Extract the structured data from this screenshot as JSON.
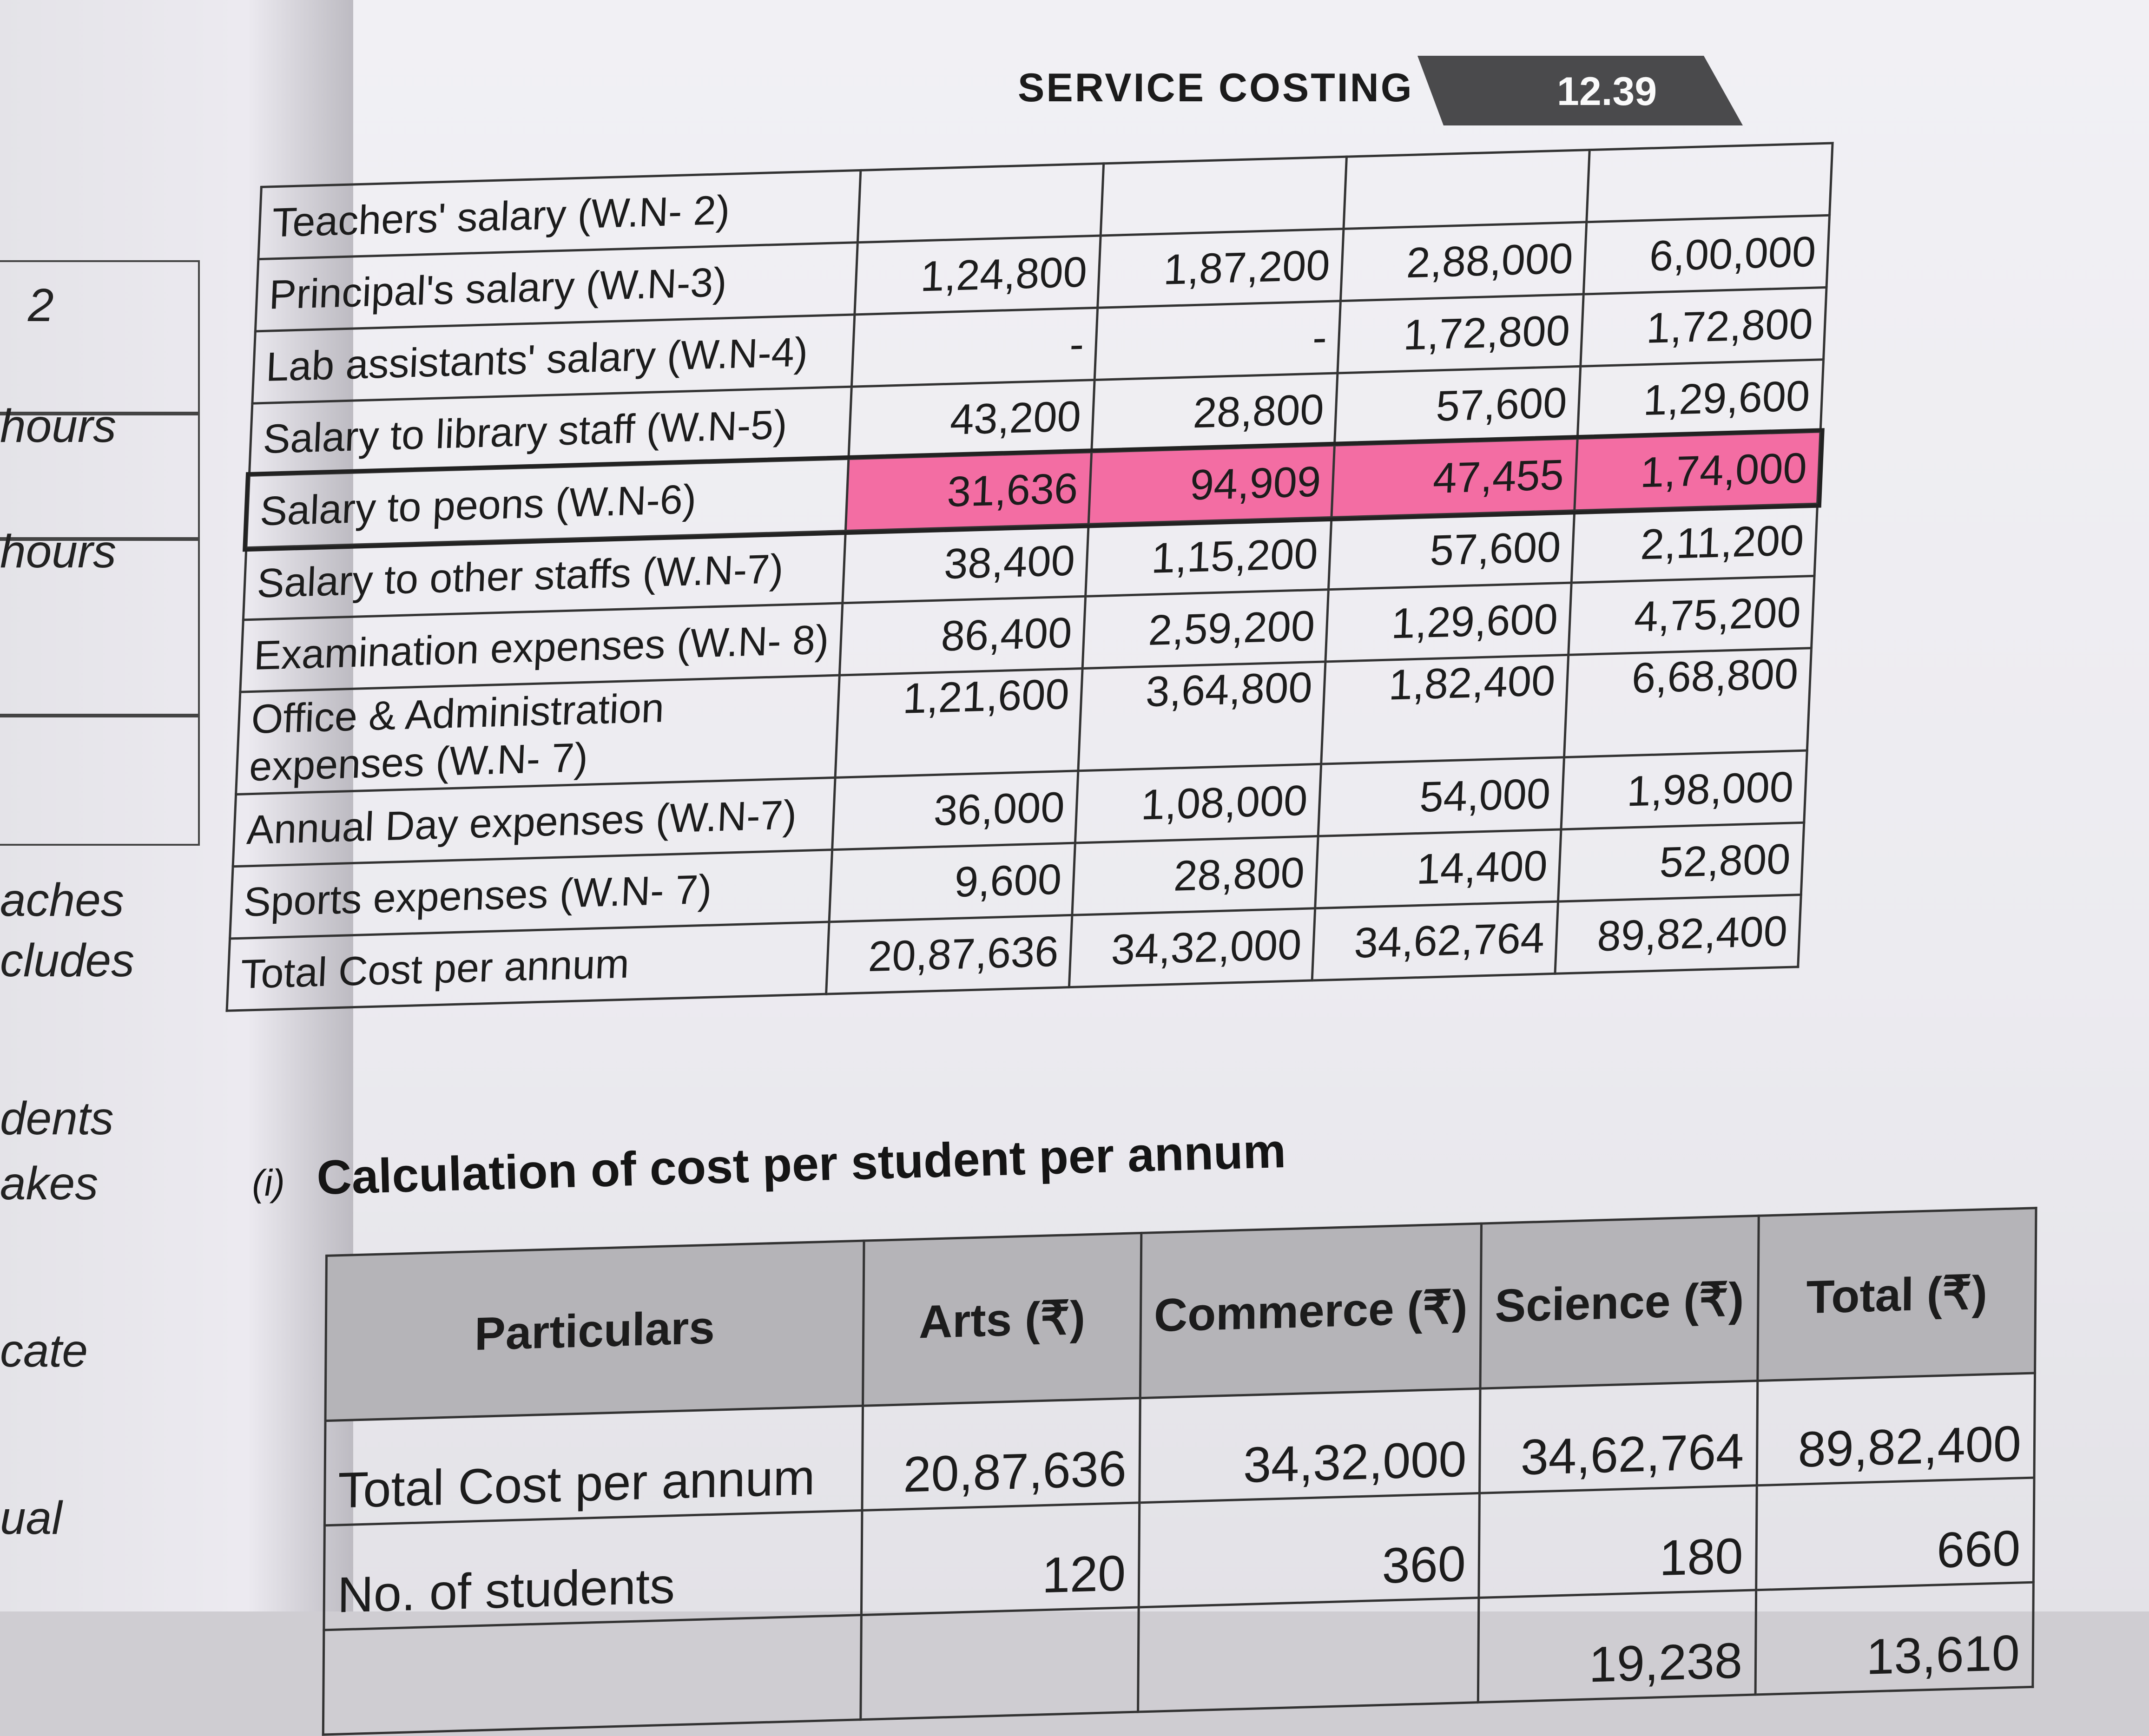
{
  "header": {
    "title": "SERVICE COSTING",
    "page_number": "12.39"
  },
  "left_page": {
    "fragments": [
      "2",
      "hours",
      "hours",
      "aches",
      "cludes",
      "dents",
      "akes",
      "cate",
      "ual"
    ]
  },
  "cost_table": {
    "rows": [
      {
        "label": "Teachers' salary (W.N- 2)",
        "values": [
          "",
          "",
          "",
          ""
        ]
      },
      {
        "label": "Principal's salary (W.N-3)",
        "values": [
          "1,24,800",
          "1,87,200",
          "2,88,000",
          "6,00,000"
        ]
      },
      {
        "label": "Lab assistants' salary (W.N-4)",
        "values": [
          "-",
          "-",
          "1,72,800",
          "1,72,800"
        ]
      },
      {
        "label": "Salary to library staff (W.N-5)",
        "values": [
          "43,200",
          "28,800",
          "57,600",
          "1,29,600"
        ]
      },
      {
        "label": "Salary to peons (W.N-6)",
        "values": [
          "31,636",
          "94,909",
          "47,455",
          "1,74,000"
        ]
      },
      {
        "label": "Salary to other staffs (W.N-7)",
        "values": [
          "38,400",
          "1,15,200",
          "57,600",
          "2,11,200"
        ]
      },
      {
        "label": "Examination expenses (W.N- 8)",
        "values": [
          "86,400",
          "2,59,200",
          "1,29,600",
          "4,75,200"
        ]
      },
      {
        "label": "Office & Administration expenses (W.N- 7)",
        "values": [
          "1,21,600",
          "3,64,800",
          "1,82,400",
          "6,68,800"
        ]
      },
      {
        "label": "Annual Day expenses (W.N-7)",
        "values": [
          "36,000",
          "1,08,000",
          "54,000",
          "1,98,000"
        ]
      },
      {
        "label": "Sports expenses (W.N- 7)",
        "values": [
          "9,600",
          "28,800",
          "14,400",
          "52,800"
        ]
      },
      {
        "label": "Total Cost per annum",
        "values": [
          "20,87,636",
          "34,32,000",
          "34,62,764",
          "89,82,400"
        ]
      }
    ]
  },
  "section": {
    "number": "(i)",
    "title": "Calculation of cost per student per annum"
  },
  "calc_table": {
    "headers": [
      "Particulars",
      "Arts (₹)",
      "Commerce (₹)",
      "Science (₹)",
      "Total (₹)"
    ],
    "rows": [
      {
        "label": "Total Cost per annum",
        "values": [
          "20,87,636",
          "34,32,000",
          "34,62,764",
          "89,82,400"
        ]
      },
      {
        "label": "No. of students",
        "values": [
          "120",
          "360",
          "180",
          "660"
        ]
      },
      {
        "label": "",
        "values": [
          "",
          "",
          "19,238",
          "13,610"
        ]
      }
    ]
  },
  "colors": {
    "highlight": "#f36da3"
  }
}
